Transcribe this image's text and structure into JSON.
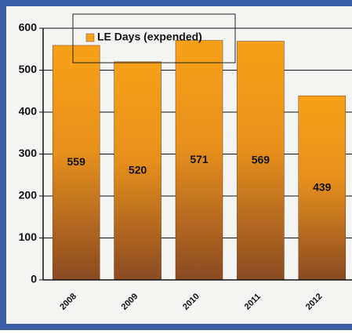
{
  "chart_data": {
    "type": "bar",
    "categories": [
      "2008",
      "2009",
      "2010",
      "2011",
      "2012"
    ],
    "series": [
      {
        "name": "LE Days (expended)",
        "color": "#f7a11a",
        "values": [
          559,
          520,
          571,
          569,
          439
        ]
      }
    ],
    "ylim": [
      0,
      600
    ],
    "yticks": [
      0,
      100,
      200,
      300,
      400,
      500,
      600
    ],
    "grid": true
  }
}
